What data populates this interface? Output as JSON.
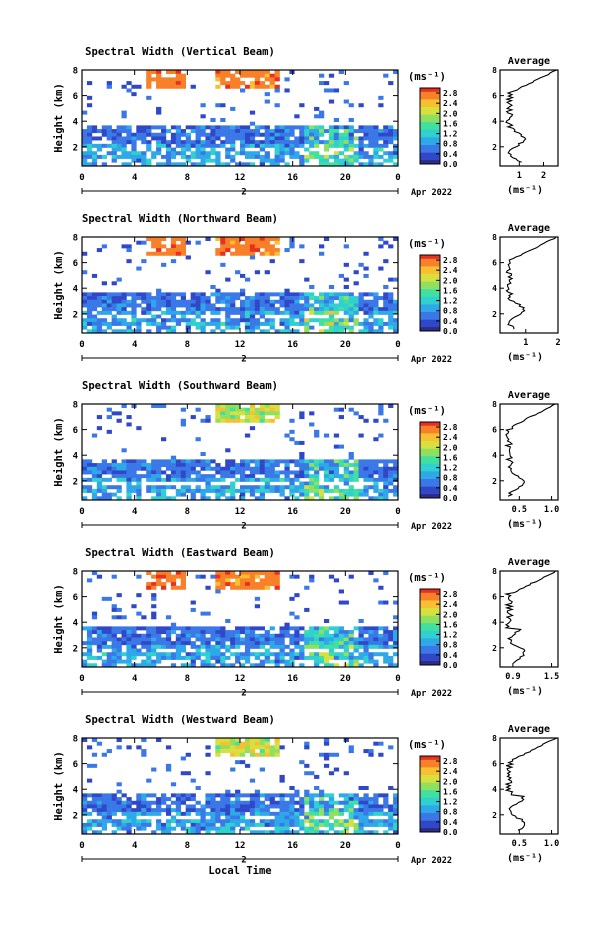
{
  "chart_data": [
    {
      "type": "heatmap",
      "title": "Spectral Width (Vertical Beam)",
      "xlabel": "",
      "ylabel": "Height (km)",
      "x_ticks": [
        "0",
        "4",
        "8",
        "12",
        "16",
        "20",
        "0"
      ],
      "y_ticks": [
        "2",
        "4",
        "6",
        "8"
      ],
      "xlim": [
        0,
        24
      ],
      "ylim": [
        0.5,
        8
      ],
      "date_marker": "2",
      "date_label": "Apr 2022",
      "colorbar": {
        "unit": "(ms⁻¹)",
        "ticks": [
          "0.0",
          "0.4",
          "0.8",
          "1.2",
          "1.6",
          "2.0",
          "2.4",
          "2.8"
        ],
        "range": [
          0,
          3
        ]
      },
      "average": {
        "title": "Average",
        "xlabel": "(ms⁻¹)",
        "x_ticks": [
          "1",
          "2"
        ],
        "xlim": [
          0.2,
          2.6
        ],
        "y_ticks": [
          "2",
          "4",
          "6",
          "8"
        ]
      }
    },
    {
      "type": "heatmap",
      "title": "Spectral Width (Northward Beam)",
      "xlabel": "",
      "ylabel": "Height (km)",
      "x_ticks": [
        "0",
        "4",
        "8",
        "12",
        "16",
        "20",
        "0"
      ],
      "y_ticks": [
        "2",
        "4",
        "6",
        "8"
      ],
      "xlim": [
        0,
        24
      ],
      "ylim": [
        0.5,
        8
      ],
      "date_marker": "2",
      "date_label": "Apr 2022",
      "colorbar": {
        "unit": "(ms⁻¹)",
        "ticks": [
          "0.0",
          "0.4",
          "0.8",
          "1.2",
          "1.6",
          "2.0",
          "2.4",
          "2.8"
        ],
        "range": [
          0,
          3
        ]
      },
      "average": {
        "title": "Average",
        "xlabel": "(ms⁻¹)",
        "x_ticks": [
          "1",
          "2"
        ],
        "xlim": [
          0.2,
          2.0
        ],
        "y_ticks": [
          "2",
          "4",
          "6",
          "8"
        ]
      }
    },
    {
      "type": "heatmap",
      "title": "Spectral Width (Southward Beam)",
      "xlabel": "",
      "ylabel": "Height (km)",
      "x_ticks": [
        "0",
        "4",
        "8",
        "12",
        "16",
        "20",
        "0"
      ],
      "y_ticks": [
        "2",
        "4",
        "6",
        "8"
      ],
      "xlim": [
        0,
        24
      ],
      "ylim": [
        0.5,
        8
      ],
      "date_marker": "2",
      "date_label": "Apr 2022",
      "colorbar": {
        "unit": "(ms⁻¹)",
        "ticks": [
          "0.0",
          "0.4",
          "0.8",
          "1.2",
          "1.6",
          "2.0",
          "2.4",
          "2.8"
        ],
        "range": [
          0,
          3
        ]
      },
      "average": {
        "title": "Average",
        "xlabel": "(ms⁻¹)",
        "x_ticks": [
          "0.5",
          "1.0"
        ],
        "xlim": [
          0.2,
          1.1
        ],
        "y_ticks": [
          "2",
          "4",
          "6",
          "8"
        ]
      }
    },
    {
      "type": "heatmap",
      "title": "Spectral Width (Eastward Beam)",
      "xlabel": "",
      "ylabel": "Height (km)",
      "x_ticks": [
        "0",
        "4",
        "8",
        "12",
        "16",
        "20",
        "0"
      ],
      "y_ticks": [
        "2",
        "4",
        "6",
        "8"
      ],
      "xlim": [
        0,
        24
      ],
      "ylim": [
        0.5,
        8
      ],
      "date_marker": "2",
      "date_label": "Apr 2022",
      "colorbar": {
        "unit": "(ms⁻¹)",
        "ticks": [
          "0.0",
          "0.4",
          "0.8",
          "1.2",
          "1.6",
          "2.0",
          "2.4",
          "2.8"
        ],
        "range": [
          0,
          3
        ]
      },
      "average": {
        "title": "Average",
        "xlabel": "(ms⁻¹)",
        "x_ticks": [
          "0.9",
          "1.5"
        ],
        "xlim": [
          0.7,
          1.6
        ],
        "y_ticks": [
          "2",
          "4",
          "6",
          "8"
        ]
      }
    },
    {
      "type": "heatmap",
      "title": "Spectral Width (Westward Beam)",
      "xlabel": "Local Time",
      "ylabel": "Height (km)",
      "x_ticks": [
        "0",
        "4",
        "8",
        "12",
        "16",
        "20",
        "0"
      ],
      "y_ticks": [
        "2",
        "4",
        "6",
        "8"
      ],
      "xlim": [
        0,
        24
      ],
      "ylim": [
        0.5,
        8
      ],
      "date_marker": "2",
      "date_label": "Apr 2022",
      "colorbar": {
        "unit": "(ms⁻¹)",
        "ticks": [
          "0.0",
          "0.4",
          "0.8",
          "1.2",
          "1.6",
          "2.0",
          "2.4",
          "2.8"
        ],
        "range": [
          0,
          3
        ]
      },
      "average": {
        "title": "Average",
        "xlabel": "(ms⁻¹)",
        "x_ticks": [
          "0.5",
          "1.0"
        ],
        "xlim": [
          0.2,
          1.1
        ],
        "y_ticks": [
          "2",
          "4",
          "6",
          "8"
        ]
      }
    }
  ],
  "colors": {
    "colormap": [
      "#2a2a80",
      "#3048c8",
      "#3a78e8",
      "#2ea8e8",
      "#30d0d0",
      "#40e0a0",
      "#90e060",
      "#d8e040",
      "#f8c030",
      "#f88028",
      "#e83020"
    ]
  }
}
